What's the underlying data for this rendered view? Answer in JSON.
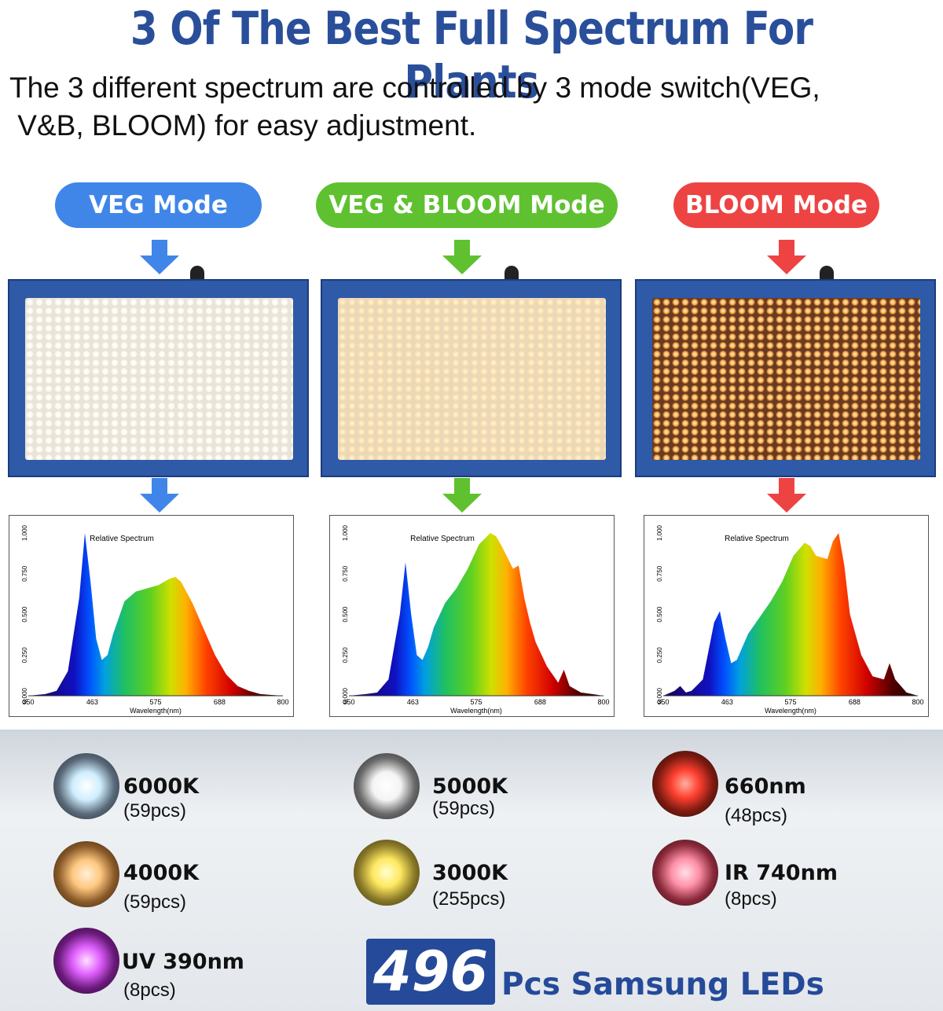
{
  "title": "3 Of The Best Full Spectrum For Plants",
  "subtitle_line1": "The 3 different spectrum are controlled by 3 mode switch(VEG,",
  "subtitle_line2": " V&B, BLOOM) for easy adjustment.",
  "modes": [
    {
      "label": "VEG Mode",
      "color": "#3f86e8"
    },
    {
      "label": "VEG & BLOOM Mode",
      "color": "#5fc130"
    },
    {
      "label": "BLOOM Mode",
      "color": "#ee4343"
    }
  ],
  "charts": [
    {
      "title": "Relative Spectrum",
      "xlabel": "Wavelength(nm)"
    },
    {
      "title": "Relative Spectrum",
      "xlabel": "Wavelength(nm)"
    },
    {
      "title": "Relative Spectrum",
      "xlabel": "Wavelength(nm)"
    }
  ],
  "chart_data": [
    {
      "type": "area",
      "title": "Relative Spectrum",
      "xlabel": "Wavelength(nm)",
      "ylabel": "",
      "x_ticks": [
        "350",
        "463",
        "575",
        "688",
        "800"
      ],
      "y_ticks": [
        "0.000",
        "0.250",
        "0.500",
        "0.750",
        "1.000"
      ],
      "xlim": [
        350,
        800
      ],
      "ylim": [
        0,
        1
      ],
      "x": [
        350,
        380,
        400,
        420,
        440,
        450,
        460,
        470,
        480,
        490,
        500,
        520,
        540,
        560,
        580,
        600,
        610,
        620,
        640,
        660,
        680,
        700,
        720,
        740,
        760,
        780,
        800
      ],
      "y": [
        0,
        0.01,
        0.03,
        0.15,
        0.6,
        1.0,
        0.7,
        0.35,
        0.22,
        0.25,
        0.38,
        0.58,
        0.64,
        0.66,
        0.68,
        0.72,
        0.73,
        0.7,
        0.57,
        0.41,
        0.25,
        0.13,
        0.06,
        0.03,
        0.01,
        0.005,
        0
      ]
    },
    {
      "type": "area",
      "title": "Relative Spectrum",
      "xlabel": "Wavelength(nm)",
      "ylabel": "",
      "x_ticks": [
        "350",
        "463",
        "575",
        "688",
        "800"
      ],
      "y_ticks": [
        "0.000",
        "0.250",
        "0.500",
        "0.750",
        "1.000"
      ],
      "xlim": [
        350,
        800
      ],
      "ylim": [
        0,
        1
      ],
      "x": [
        350,
        380,
        400,
        420,
        440,
        450,
        460,
        470,
        480,
        490,
        500,
        520,
        540,
        560,
        580,
        600,
        610,
        620,
        640,
        650,
        660,
        670,
        680,
        700,
        720,
        730,
        740,
        760,
        780,
        800
      ],
      "y": [
        0,
        0.01,
        0.02,
        0.1,
        0.5,
        0.82,
        0.5,
        0.25,
        0.22,
        0.3,
        0.42,
        0.57,
        0.66,
        0.78,
        0.93,
        1.0,
        0.98,
        0.92,
        0.78,
        0.8,
        0.6,
        0.45,
        0.33,
        0.18,
        0.08,
        0.16,
        0.06,
        0.02,
        0.01,
        0
      ]
    },
    {
      "type": "area",
      "title": "Relative Spectrum",
      "xlabel": "Wavelength(nm)",
      "ylabel": "",
      "x_ticks": [
        "350",
        "463",
        "575",
        "688",
        "800"
      ],
      "y_ticks": [
        "0.000",
        "0.250",
        "0.500",
        "0.750",
        "1.000"
      ],
      "xlim": [
        350,
        800
      ],
      "ylim": [
        0,
        1
      ],
      "x": [
        350,
        370,
        380,
        390,
        400,
        420,
        440,
        450,
        460,
        470,
        480,
        500,
        520,
        540,
        560,
        580,
        600,
        610,
        620,
        640,
        650,
        660,
        670,
        680,
        700,
        720,
        740,
        750,
        760,
        780,
        800
      ],
      "y": [
        0,
        0.03,
        0.06,
        0.02,
        0.03,
        0.1,
        0.45,
        0.52,
        0.35,
        0.2,
        0.22,
        0.38,
        0.48,
        0.58,
        0.7,
        0.86,
        0.94,
        0.92,
        0.86,
        0.84,
        0.95,
        1.0,
        0.8,
        0.5,
        0.25,
        0.12,
        0.1,
        0.2,
        0.1,
        0.02,
        0
      ]
    }
  ],
  "leds": [
    {
      "name": "6000K",
      "count": "(59pcs)",
      "color": "#dff4ff"
    },
    {
      "name": "5000K",
      "count": "(59pcs)",
      "color": "#ffffff"
    },
    {
      "name": "660nm",
      "count": "(48pcs)",
      "color": "#ff5040"
    },
    {
      "name": "4000K",
      "count": "(59pcs)",
      "color": "#ffd8a0"
    },
    {
      "name": "3000K",
      "count": "(255pcs)",
      "color": "#ffee80"
    },
    {
      "name": "IR 740nm",
      "count": "(8pcs)",
      "color": "#ffb0c0"
    },
    {
      "name": "UV 390nm",
      "count": "(8pcs)",
      "color": "#e070ff"
    }
  ],
  "total": {
    "number": "496",
    "label": "Pcs Samsung LEDs"
  }
}
